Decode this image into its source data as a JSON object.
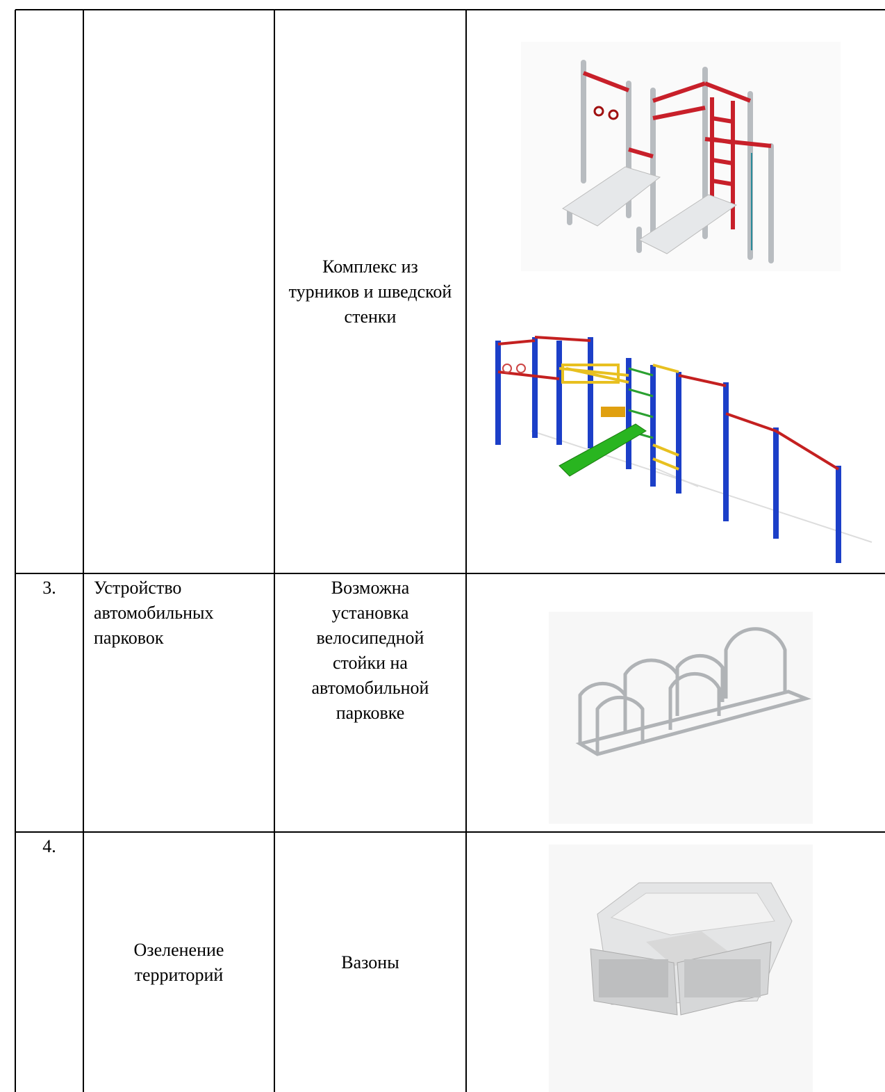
{
  "table": {
    "rows": [
      [
        "",
        "",
        "Комплекс из турников и шведской стенки"
      ],
      [
        "3.",
        "Устройство автомобильных парковок",
        "Возможна установка велосипедной стойки на автомобильной парковке"
      ],
      [
        "4.",
        "Озеленение территорий",
        "Вазоны"
      ]
    ]
  }
}
